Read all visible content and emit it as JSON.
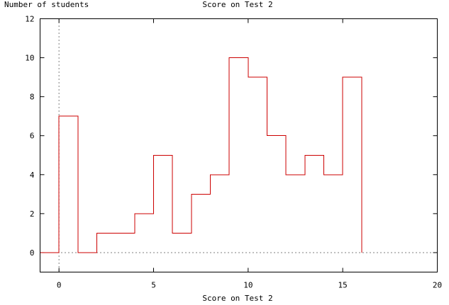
{
  "chart_data": {
    "type": "line",
    "step": "histogram",
    "title": "Score on Test 2",
    "xlabel": "Score on Test 2",
    "ylabel": "Number of students",
    "xlim": [
      -1,
      20
    ],
    "ylim": [
      -1,
      12
    ],
    "xticks": [
      0,
      5,
      10,
      15,
      20
    ],
    "yticks": [
      0,
      2,
      4,
      6,
      8,
      10,
      12
    ],
    "zero_axes": true,
    "grid": false,
    "legend": "none",
    "line_color": "#cc0000",
    "series": [
      {
        "x": [
          -1,
          0,
          1,
          2,
          3,
          4,
          5,
          6,
          7,
          8,
          9,
          10,
          11,
          12,
          13,
          14,
          15,
          16
        ],
        "values": [
          0,
          7,
          0,
          1,
          1,
          2,
          5,
          1,
          3,
          4,
          10,
          9,
          6,
          4,
          5,
          4,
          9,
          0
        ]
      }
    ]
  }
}
